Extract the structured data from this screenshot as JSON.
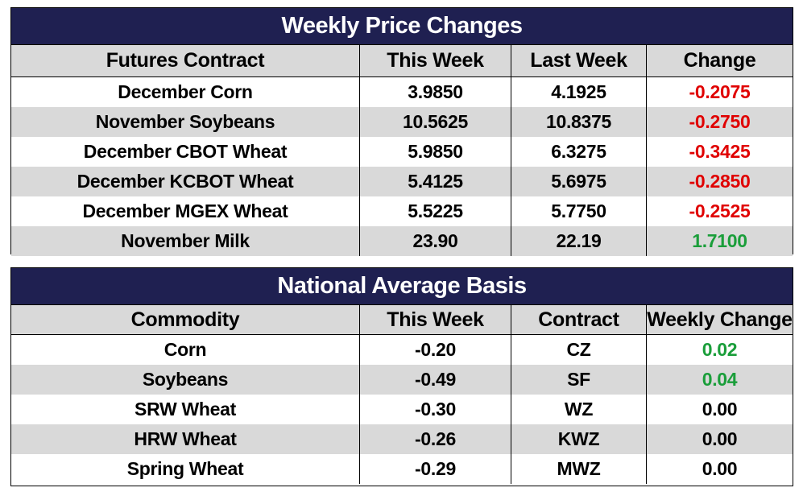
{
  "price_table": {
    "title": "Weekly Price Changes",
    "headers": [
      "Futures Contract",
      "This Week",
      "Last Week",
      "Change"
    ],
    "rows": [
      {
        "contract": "December Corn",
        "this_week": "3.9850",
        "last_week": "4.1925",
        "change": "-0.2075",
        "change_color": "#e00000"
      },
      {
        "contract": "November Soybeans",
        "this_week": "10.5625",
        "last_week": "10.8375",
        "change": "-0.2750",
        "change_color": "#e00000"
      },
      {
        "contract": "December CBOT Wheat",
        "this_week": "5.9850",
        "last_week": "6.3275",
        "change": "-0.3425",
        "change_color": "#e00000"
      },
      {
        "contract": "December KCBOT Wheat",
        "this_week": "5.4125",
        "last_week": "5.6975",
        "change": "-0.2850",
        "change_color": "#e00000"
      },
      {
        "contract": "December MGEX Wheat",
        "this_week": "5.5225",
        "last_week": "5.7750",
        "change": "-0.2525",
        "change_color": "#e00000"
      },
      {
        "contract": "November Milk",
        "this_week": "23.90",
        "last_week": "22.19",
        "change": "1.7100",
        "change_color": "#1a9e3a"
      }
    ]
  },
  "basis_table": {
    "title": "National Average Basis",
    "headers": [
      "Commodity",
      "This Week",
      "Contract",
      "Weekly Change"
    ],
    "rows": [
      {
        "commodity": "Corn",
        "this_week": "-0.20",
        "contract": "CZ",
        "weekly_change": "0.02",
        "change_color": "#1a9e3a"
      },
      {
        "commodity": "Soybeans",
        "this_week": "-0.49",
        "contract": "SF",
        "weekly_change": "0.04",
        "change_color": "#1a9e3a"
      },
      {
        "commodity": "SRW Wheat",
        "this_week": "-0.30",
        "contract": "WZ",
        "weekly_change": "0.00",
        "change_color": "#000000"
      },
      {
        "commodity": "HRW Wheat",
        "this_week": "-0.26",
        "contract": "KWZ",
        "weekly_change": "0.00",
        "change_color": "#000000"
      },
      {
        "commodity": "Spring Wheat",
        "this_week": "-0.29",
        "contract": "MWZ",
        "weekly_change": "0.00",
        "change_color": "#000000"
      }
    ]
  },
  "colors": {
    "title_bg": "#1f2051",
    "alt_row": "#d9d9d9",
    "negative": "#e00000",
    "positive": "#1a9e3a"
  }
}
